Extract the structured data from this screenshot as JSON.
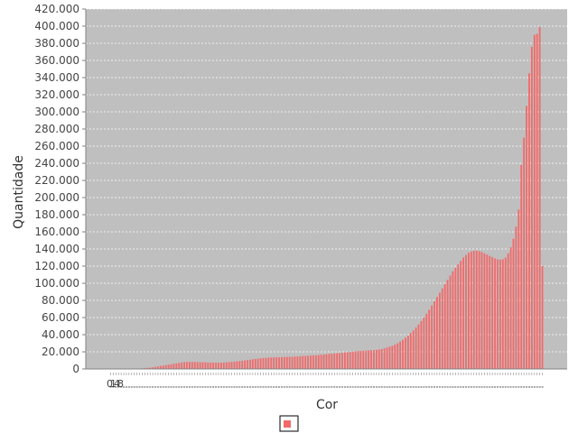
{
  "chart_data": {
    "type": "bar",
    "xlabel": "Cor",
    "ylabel": "Quantidade",
    "ylim": [
      0,
      420000
    ],
    "ytick_step": 20000,
    "yticks": [
      "0",
      "20.000",
      "40.000",
      "60.000",
      "80.000",
      "100.000",
      "120.000",
      "140.000",
      "160.000",
      "180.000",
      "200.000",
      "220.000",
      "240.000",
      "260.000",
      "280.000",
      "300.000",
      "320.000",
      "340.000",
      "360.000",
      "380.000",
      "400.000",
      "420.000"
    ],
    "x_tick_labels_visible": [
      "0",
      "1",
      "4",
      "8"
    ],
    "grid": true,
    "legend_placement": "bottom-center",
    "series": [
      {
        "name": "",
        "color": "#f26a6a",
        "values": [
          0,
          0,
          0,
          0,
          0,
          0,
          0,
          0,
          0,
          0,
          200,
          400,
          600,
          900,
          1200,
          1500,
          2000,
          2500,
          3000,
          3500,
          4000,
          4500,
          5000,
          5500,
          6000,
          6500,
          7000,
          7500,
          8000,
          8200,
          8300,
          8200,
          8100,
          8000,
          7900,
          7800,
          7700,
          7600,
          7500,
          7400,
          7300,
          7300,
          7400,
          7600,
          7800,
          8000,
          8300,
          8600,
          8900,
          9200,
          9600,
          10000,
          10400,
          10800,
          11200,
          11600,
          12000,
          12400,
          12700,
          13000,
          13200,
          13400,
          13500,
          13600,
          13700,
          13800,
          13900,
          14000,
          14100,
          14200,
          14400,
          14600,
          14800,
          15000,
          15200,
          15400,
          15600,
          15800,
          16000,
          16300,
          16600,
          16900,
          17200,
          17500,
          17800,
          18100,
          18400,
          18700,
          19000,
          19300,
          19600,
          19900,
          20200,
          20500,
          20800,
          21000,
          21200,
          21400,
          21600,
          21800,
          22000,
          22300,
          22700,
          23200,
          24000,
          25000,
          26000,
          27000,
          28500,
          30000,
          32000,
          34000,
          36500,
          39000,
          42000,
          45000,
          48500,
          52000,
          56000,
          60000,
          64500,
          69000,
          74000,
          79000,
          84000,
          89000,
          94000,
          99000,
          104000,
          109000,
          114000,
          118000,
          122000,
          126000,
          130000,
          133000,
          135500,
          137000,
          138000,
          138000,
          137500,
          136500,
          135000,
          133500,
          132000,
          130500,
          129000,
          128000,
          127500,
          128000,
          130000,
          135000,
          142000,
          152000,
          166000,
          186000,
          238000,
          270000,
          307000,
          345000,
          376000,
          390000,
          391000,
          399000,
          120000
        ]
      }
    ]
  }
}
